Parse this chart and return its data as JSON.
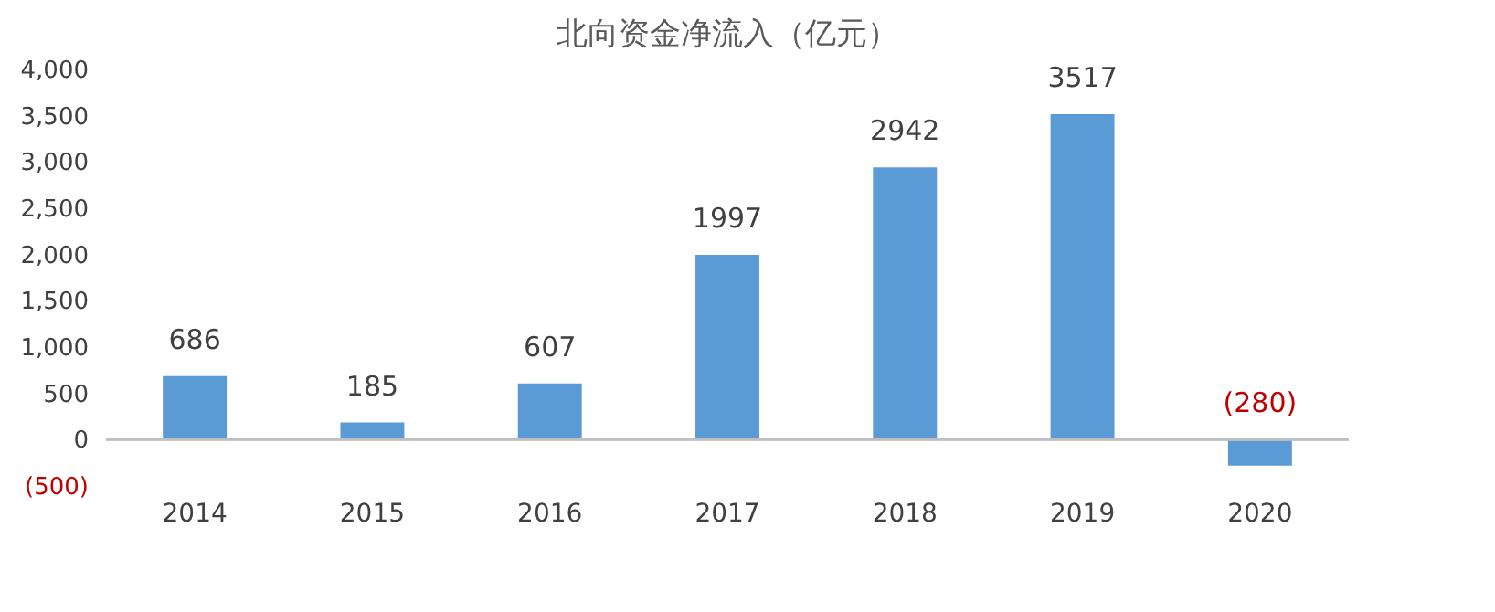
{
  "chart_data": {
    "type": "bar",
    "title": "北向资金净流入（亿元）",
    "categories": [
      "2014",
      "2015",
      "2016",
      "2017",
      "2018",
      "2019",
      "2020"
    ],
    "values": [
      686,
      185,
      607,
      1997,
      2942,
      3517,
      -280
    ],
    "value_labels": [
      "686",
      "185",
      "607",
      "1997",
      "2942",
      "3517",
      "(280)"
    ],
    "color": "#5b9bd5",
    "ylim": [
      -500,
      4000
    ],
    "yticks": [
      {
        "value": -500,
        "label": "(500)"
      },
      0,
      {
        "value": 500,
        "label": "500"
      },
      {
        "value": 1000,
        "label": "1,000"
      },
      {
        "value": 1500,
        "label": "1,500"
      },
      {
        "value": 2000,
        "label": "2,000"
      },
      {
        "value": 2500,
        "label": "2,500"
      },
      {
        "value": 3000,
        "label": "3,000"
      },
      {
        "value": 3500,
        "label": "3,500"
      },
      {
        "value": 4000,
        "label": "4,000"
      }
    ],
    "grid": false,
    "legend": false
  }
}
